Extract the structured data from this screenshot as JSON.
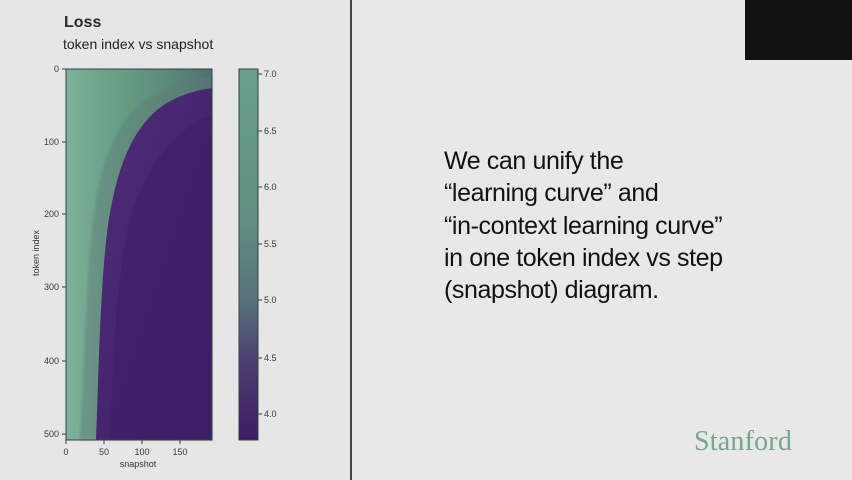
{
  "chart": {
    "title": "Loss",
    "subtitle": "token index vs snapshot",
    "xlabel": "snapshot",
    "ylabel": "token index",
    "x_ticks": [
      "0",
      "50",
      "100",
      "150"
    ],
    "y_ticks": [
      "0",
      "100",
      "200",
      "300",
      "400",
      "500"
    ],
    "colorbar_ticks": [
      "7.0",
      "6.5",
      "6.0",
      "5.5",
      "5.0",
      "4.5",
      "4.0"
    ]
  },
  "slide": {
    "lines": [
      "We can unify the",
      "“learning curve” and",
      "“in-context learning curve”",
      "in one token  index vs step",
      "(snapshot) diagram."
    ],
    "logo": "Stanford"
  },
  "chart_data": {
    "type": "heatmap",
    "title": "Loss",
    "subtitle": "token index vs snapshot",
    "xlabel": "snapshot",
    "ylabel": "token index",
    "xlim": [
      0,
      195
    ],
    "ylim": [
      512,
      0
    ],
    "x_ticks": [
      0,
      50,
      100,
      150
    ],
    "y_ticks": [
      0,
      100,
      200,
      300,
      400,
      500
    ],
    "colorbar": {
      "range": [
        3.75,
        7.05
      ],
      "ticks": [
        7.0,
        6.5,
        6.0,
        5.5,
        5.0,
        4.5,
        4.0
      ],
      "colors": [
        "#44206c",
        "#5f8f79",
        "#6aa18a"
      ]
    },
    "regions": [
      {
        "value": 7.0,
        "note": "high loss near first tokens and early snapshots"
      },
      {
        "value": 3.9,
        "note": "low loss after early snapshots"
      }
    ]
  },
  "colors": {
    "slide_background": "#e9e8e8",
    "panel_background": "#e7e6e6",
    "dark_band": "#0c0c0c",
    "heatmap_high": "#5f8f79",
    "heatmap_low": "#44206c",
    "logo": "#78a58c"
  }
}
